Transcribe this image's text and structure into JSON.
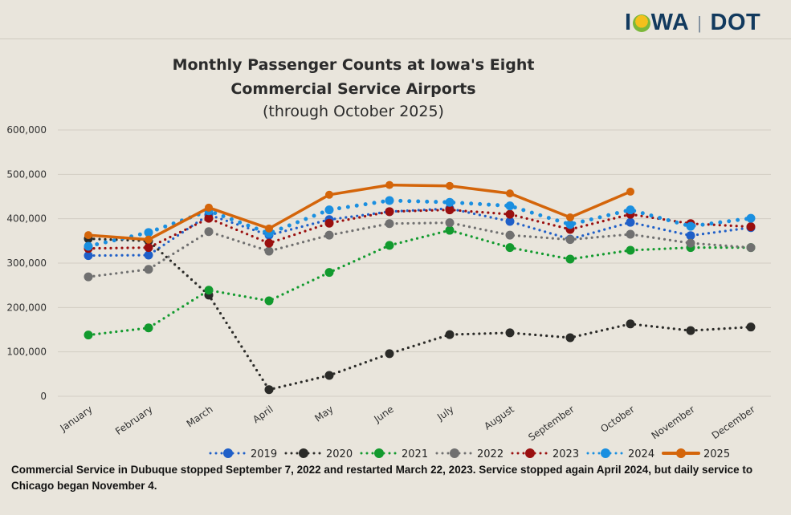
{
  "logo": {
    "text_left": "IOWA",
    "text_right": "DOT"
  },
  "chart_data": {
    "type": "line",
    "title": "Monthly Passenger Counts at Iowa's Eight Commercial Service Airports",
    "title_line1": "Monthly Passenger Counts at Iowa's Eight",
    "title_line2": "Commercial Service Airports",
    "subtitle": "(through October 2025)",
    "xlabel": "",
    "ylabel": "",
    "ylim": [
      0,
      600000
    ],
    "yticks": [
      "0",
      "100,000",
      "200,000",
      "300,000",
      "400,000",
      "500,000",
      "600,000"
    ],
    "grid": true,
    "legend_position": "bottom",
    "categories": [
      "January",
      "February",
      "March",
      "April",
      "May",
      "June",
      "July",
      "August",
      "September",
      "October",
      "November",
      "December"
    ],
    "series": [
      {
        "name": "2019",
        "color": "#1f5fc8",
        "style": "dotted",
        "values": [
          317000,
          318000,
          409000,
          363000,
          398000,
          416000,
          423000,
          394000,
          354000,
          392000,
          362000,
          380000
        ]
      },
      {
        "name": "2020",
        "color": "#2b2b28",
        "style": "dotted",
        "values": [
          355000,
          350000,
          228000,
          15000,
          47000,
          96000,
          139000,
          143000,
          132000,
          163000,
          148000,
          156000
        ]
      },
      {
        "name": "2021",
        "color": "#129a2e",
        "style": "dotted",
        "values": [
          138000,
          154000,
          239000,
          215000,
          279000,
          340000,
          374000,
          335000,
          309000,
          329000,
          335000,
          335000
        ]
      },
      {
        "name": "2022",
        "color": "#707070",
        "style": "dotted",
        "values": [
          269000,
          286000,
          371000,
          327000,
          363000,
          389000,
          391000,
          363000,
          353000,
          365000,
          345000,
          335000
        ]
      },
      {
        "name": "2023",
        "color": "#9a0f0f",
        "style": "dotted",
        "values": [
          333000,
          335000,
          401000,
          345000,
          390000,
          416000,
          420000,
          410000,
          376000,
          410000,
          389000,
          382000
        ]
      },
      {
        "name": "2024",
        "color": "#1a8fe0",
        "style": "dotted",
        "values": [
          338000,
          369000,
          418000,
          367000,
          420000,
          441000,
          437000,
          429000,
          387000,
          420000,
          383000,
          401000
        ]
      },
      {
        "name": "2025",
        "color": "#d4650a",
        "style": "solid",
        "values": [
          363000,
          353000,
          425000,
          378000,
          454000,
          476000,
          474000,
          457000,
          403000,
          461000,
          null,
          null
        ]
      }
    ]
  },
  "footnote": "Commercial Service in Dubuque stopped September 7, 2022 and restarted March 22, 2023. Service stopped again April 2024, but daily service to Chicago began November 4."
}
